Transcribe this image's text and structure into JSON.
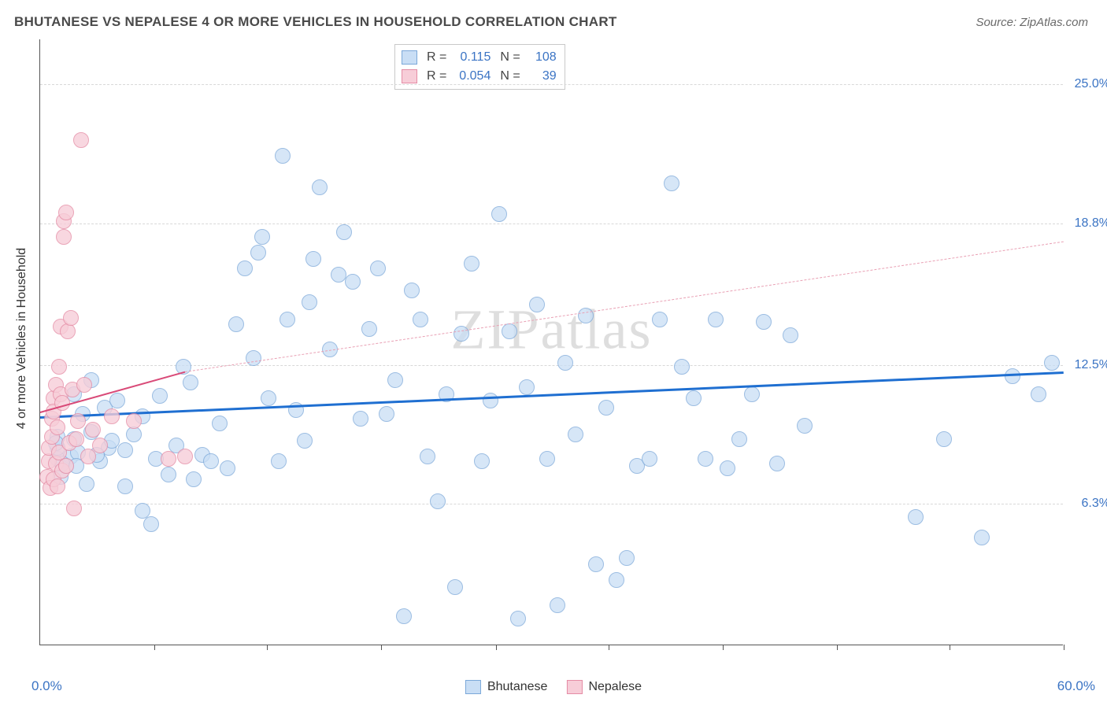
{
  "title": "BHUTANESE VS NEPALESE 4 OR MORE VEHICLES IN HOUSEHOLD CORRELATION CHART",
  "source": "Source: ZipAtlas.com",
  "watermark": "ZIPatlas",
  "y_axis_label": "4 or more Vehicles in Household",
  "chart": {
    "type": "scatter",
    "xlim": [
      0,
      60
    ],
    "ylim": [
      0,
      27
    ],
    "x_min_label": "0.0%",
    "x_max_label": "60.0%",
    "y_ticks": [
      {
        "v": 6.3,
        "label": "6.3%"
      },
      {
        "v": 12.5,
        "label": "12.5%"
      },
      {
        "v": 18.8,
        "label": "18.8%"
      },
      {
        "v": 25.0,
        "label": "25.0%"
      }
    ],
    "x_tick_positions": [
      6.7,
      13.3,
      20,
      26.7,
      33.3,
      40,
      46.7,
      53.3,
      60
    ],
    "background_color": "#ffffff",
    "grid_color": "#d8d8d8",
    "point_radius": 10,
    "series": [
      {
        "name": "Bhutanese",
        "fill": "#c9def5",
        "stroke": "#7ba8d9",
        "opacity": 0.75,
        "R": "0.115",
        "N": "108",
        "trend": {
          "x1": 0,
          "y1": 10.2,
          "x2": 60,
          "y2": 12.2,
          "color": "#1f6fd1",
          "width": 3,
          "dash": false
        },
        "extrapolate": null,
        "points": [
          [
            1,
            8.3
          ],
          [
            1,
            8.8
          ],
          [
            1,
            9.3
          ],
          [
            1.2,
            7.5
          ],
          [
            1.5,
            8
          ],
          [
            1.8,
            8.4
          ],
          [
            2,
            11.2
          ],
          [
            2,
            9.2
          ],
          [
            2.2,
            8.6
          ],
          [
            2.5,
            10.3
          ],
          [
            2.7,
            7.2
          ],
          [
            3,
            9.5
          ],
          [
            3,
            11.8
          ],
          [
            3.5,
            8.2
          ],
          [
            3.8,
            10.6
          ],
          [
            4,
            8.8
          ],
          [
            4.2,
            9.1
          ],
          [
            4.5,
            10.9
          ],
          [
            5,
            8.7
          ],
          [
            5,
            7.1
          ],
          [
            5.5,
            9.4
          ],
          [
            6,
            10.2
          ],
          [
            6,
            6.0
          ],
          [
            6.5,
            5.4
          ],
          [
            6.8,
            8.3
          ],
          [
            7,
            11.1
          ],
          [
            7.5,
            7.6
          ],
          [
            8,
            8.9
          ],
          [
            8.4,
            12.4
          ],
          [
            8.8,
            11.7
          ],
          [
            9,
            7.4
          ],
          [
            9.5,
            8.5
          ],
          [
            10,
            8.2
          ],
          [
            10.5,
            9.9
          ],
          [
            11,
            7.9
          ],
          [
            11.5,
            14.3
          ],
          [
            12,
            16.8
          ],
          [
            12.5,
            12.8
          ],
          [
            12.8,
            17.5
          ],
          [
            13,
            18.2
          ],
          [
            13.4,
            11.0
          ],
          [
            14,
            8.2
          ],
          [
            14.2,
            21.8
          ],
          [
            14.5,
            14.5
          ],
          [
            15,
            10.5
          ],
          [
            15.5,
            9.1
          ],
          [
            15.8,
            15.3
          ],
          [
            16,
            17.2
          ],
          [
            16.4,
            20.4
          ],
          [
            17,
            13.2
          ],
          [
            17.5,
            16.5
          ],
          [
            17.8,
            18.4
          ],
          [
            18.3,
            16.2
          ],
          [
            18.8,
            10.1
          ],
          [
            19.3,
            14.1
          ],
          [
            19.8,
            16.8
          ],
          [
            20.3,
            10.3
          ],
          [
            20.8,
            11.8
          ],
          [
            21.3,
            1.3
          ],
          [
            21.8,
            15.8
          ],
          [
            22.3,
            14.5
          ],
          [
            22.7,
            8.4
          ],
          [
            23.3,
            6.4
          ],
          [
            23.8,
            11.2
          ],
          [
            24.3,
            2.6
          ],
          [
            24.7,
            13.9
          ],
          [
            25.3,
            17.0
          ],
          [
            25.9,
            8.2
          ],
          [
            26.4,
            10.9
          ],
          [
            26.9,
            19.2
          ],
          [
            27.5,
            14.0
          ],
          [
            28,
            1.2
          ],
          [
            28.5,
            11.5
          ],
          [
            29.1,
            15.2
          ],
          [
            29.7,
            8.3
          ],
          [
            30.3,
            1.8
          ],
          [
            30.8,
            12.6
          ],
          [
            31.4,
            9.4
          ],
          [
            32,
            14.7
          ],
          [
            32.6,
            3.6
          ],
          [
            33.2,
            10.6
          ],
          [
            33.8,
            2.9
          ],
          [
            34.4,
            3.9
          ],
          [
            35,
            8.0
          ],
          [
            35.7,
            8.3
          ],
          [
            36.3,
            14.5
          ],
          [
            37,
            20.6
          ],
          [
            37.6,
            12.4
          ],
          [
            38.3,
            11.0
          ],
          [
            39,
            8.3
          ],
          [
            39.6,
            14.5
          ],
          [
            40.3,
            7.9
          ],
          [
            41,
            9.2
          ],
          [
            41.7,
            11.2
          ],
          [
            42.4,
            14.4
          ],
          [
            43.2,
            8.1
          ],
          [
            44,
            13.8
          ],
          [
            44.8,
            9.8
          ],
          [
            51.3,
            5.7
          ],
          [
            53,
            9.2
          ],
          [
            55.2,
            4.8
          ],
          [
            57,
            12.0
          ],
          [
            58.5,
            11.2
          ],
          [
            59.3,
            12.6
          ],
          [
            1.3,
            8.1
          ],
          [
            2.1,
            8.0
          ],
          [
            3.3,
            8.5
          ],
          [
            0.9,
            9.0
          ]
        ]
      },
      {
        "name": "Nepalese",
        "fill": "#f7cdd8",
        "stroke": "#e58ca5",
        "opacity": 0.78,
        "R": "0.054",
        "N": "39",
        "trend": {
          "x1": 0,
          "y1": 10.4,
          "x2": 8.5,
          "y2": 12.2,
          "color": "#d94a78",
          "width": 2.5,
          "dash": false
        },
        "extrapolate": {
          "x1": 8.5,
          "y1": 12.2,
          "x2": 60,
          "y2": 18.0,
          "color": "#e9a0b4",
          "width": 1.5,
          "dash": true
        },
        "points": [
          [
            0.4,
            7.5
          ],
          [
            0.5,
            8.2
          ],
          [
            0.5,
            8.8
          ],
          [
            0.6,
            7.0
          ],
          [
            0.7,
            9.3
          ],
          [
            0.7,
            10.1
          ],
          [
            0.8,
            7.4
          ],
          [
            0.8,
            11.0
          ],
          [
            0.8,
            10.4
          ],
          [
            0.9,
            8.1
          ],
          [
            0.9,
            11.6
          ],
          [
            1.0,
            7.1
          ],
          [
            1.0,
            9.7
          ],
          [
            1.1,
            12.4
          ],
          [
            1.1,
            8.6
          ],
          [
            1.2,
            11.2
          ],
          [
            1.2,
            14.2
          ],
          [
            1.3,
            7.8
          ],
          [
            1.3,
            10.8
          ],
          [
            1.4,
            18.2
          ],
          [
            1.4,
            18.9
          ],
          [
            1.5,
            19.3
          ],
          [
            1.5,
            8.0
          ],
          [
            1.6,
            14.0
          ],
          [
            1.7,
            9.0
          ],
          [
            1.8,
            14.6
          ],
          [
            1.9,
            11.4
          ],
          [
            2.0,
            6.1
          ],
          [
            2.1,
            9.2
          ],
          [
            2.2,
            10.0
          ],
          [
            2.4,
            22.5
          ],
          [
            2.6,
            11.6
          ],
          [
            2.8,
            8.4
          ],
          [
            3.1,
            9.6
          ],
          [
            3.5,
            8.9
          ],
          [
            4.2,
            10.2
          ],
          [
            5.5,
            10.0
          ],
          [
            7.5,
            8.3
          ],
          [
            8.5,
            8.4
          ]
        ]
      }
    ]
  }
}
